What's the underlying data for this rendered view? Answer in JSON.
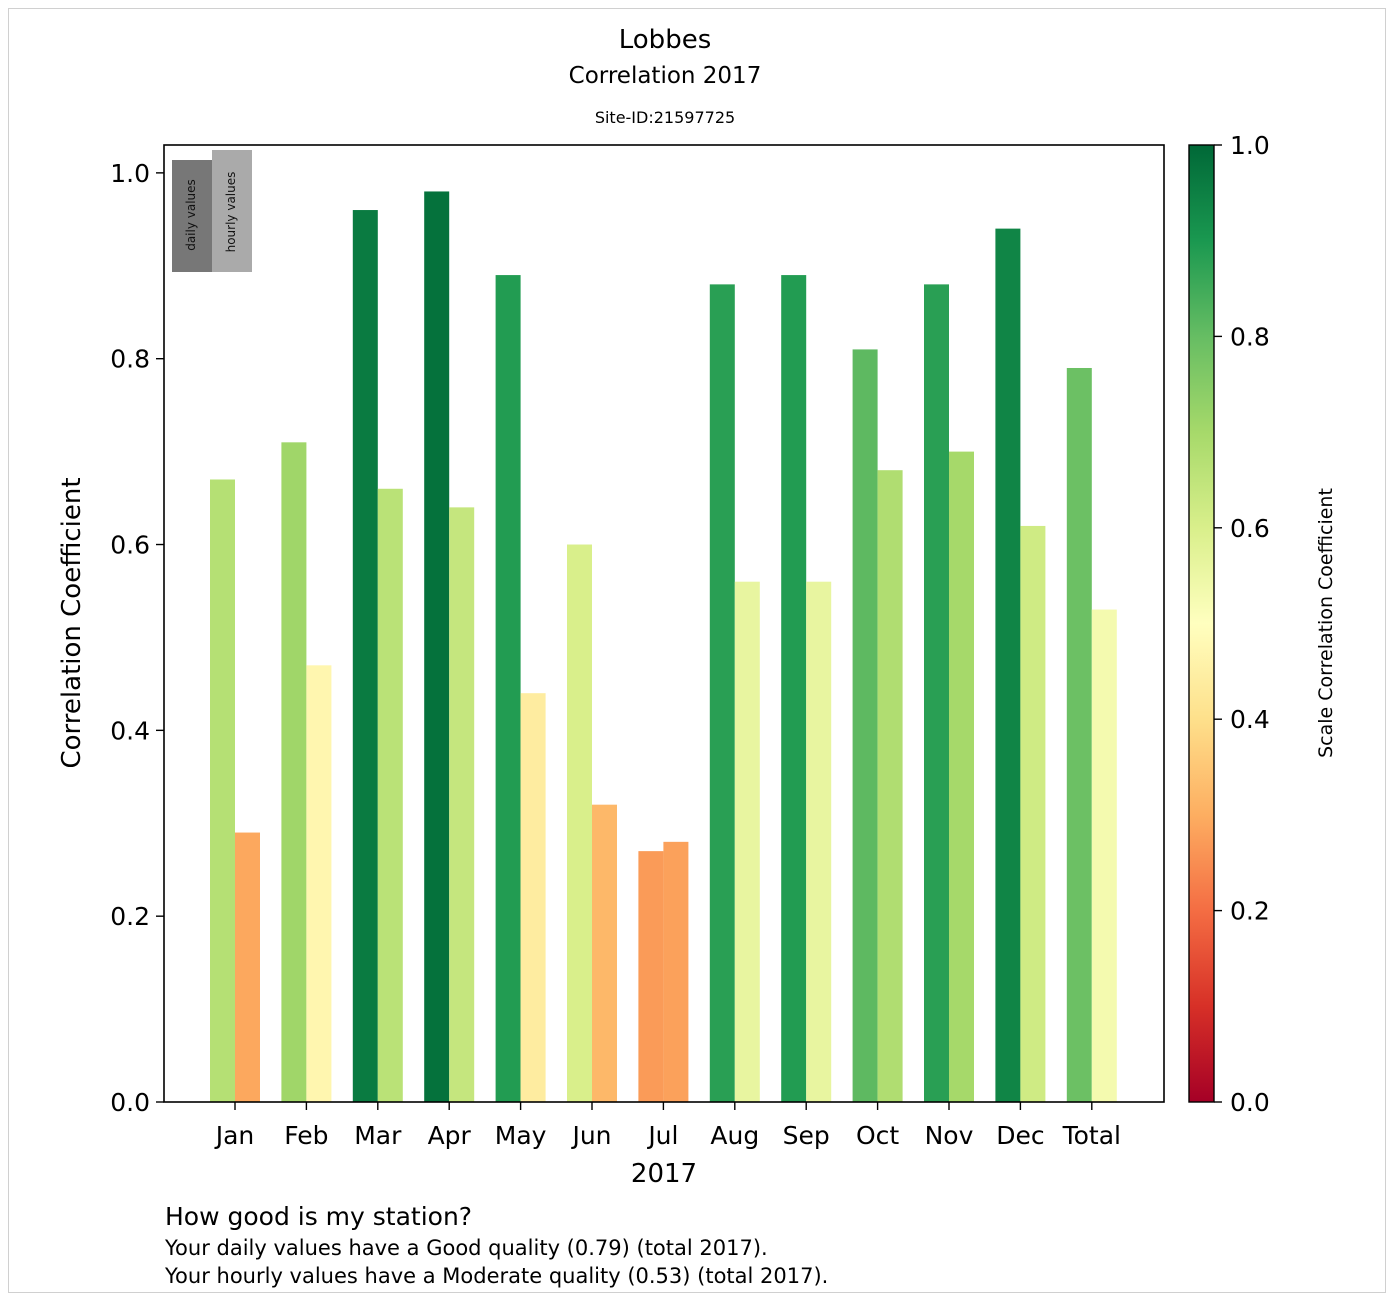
{
  "header": {
    "title": "Lobbes",
    "subtitle": "Correlation 2017",
    "site": "Site-ID:21597725"
  },
  "footer": {
    "question": "How good is my station?",
    "daily_text": "Your daily values have a Good quality (0.79) (total 2017).",
    "hourly_text": "Your hourly values have a Moderate quality (0.53) (total 2017)."
  },
  "chart_data": {
    "type": "bar",
    "categories": [
      "Jan",
      "Feb",
      "Mar",
      "Apr",
      "May",
      "Jun",
      "Jul",
      "Aug",
      "Sep",
      "Oct",
      "Nov",
      "Dec",
      "Total"
    ],
    "series": [
      {
        "name": "daily values",
        "values": [
          0.67,
          0.71,
          0.96,
          0.98,
          0.89,
          0.6,
          0.27,
          0.88,
          0.89,
          0.81,
          0.88,
          0.94,
          0.79
        ]
      },
      {
        "name": "hourly values",
        "values": [
          0.29,
          0.47,
          0.66,
          0.64,
          0.44,
          0.32,
          0.28,
          0.56,
          0.56,
          0.68,
          0.7,
          0.62,
          0.53
        ]
      }
    ],
    "xlabel": "2017",
    "ylabel": "Correlation Coefficient",
    "ylim": [
      0.0,
      1.03
    ],
    "yticks": [
      "0.0",
      "0.2",
      "0.4",
      "0.6",
      "0.8",
      "1.0"
    ],
    "colorbar": {
      "label": "Scale Correlation Coefficient",
      "range": [
        0.0,
        1.0
      ],
      "ticks": [
        "0.0",
        "0.2",
        "0.4",
        "0.6",
        "0.8",
        "1.0"
      ],
      "colormap": "RdYlGn"
    },
    "legend": {
      "daily_label": "daily values",
      "hourly_label": "hourly values",
      "daily_color": "#777777",
      "hourly_color": "#aaaaaa",
      "placement": "top-left"
    },
    "grid": false
  }
}
